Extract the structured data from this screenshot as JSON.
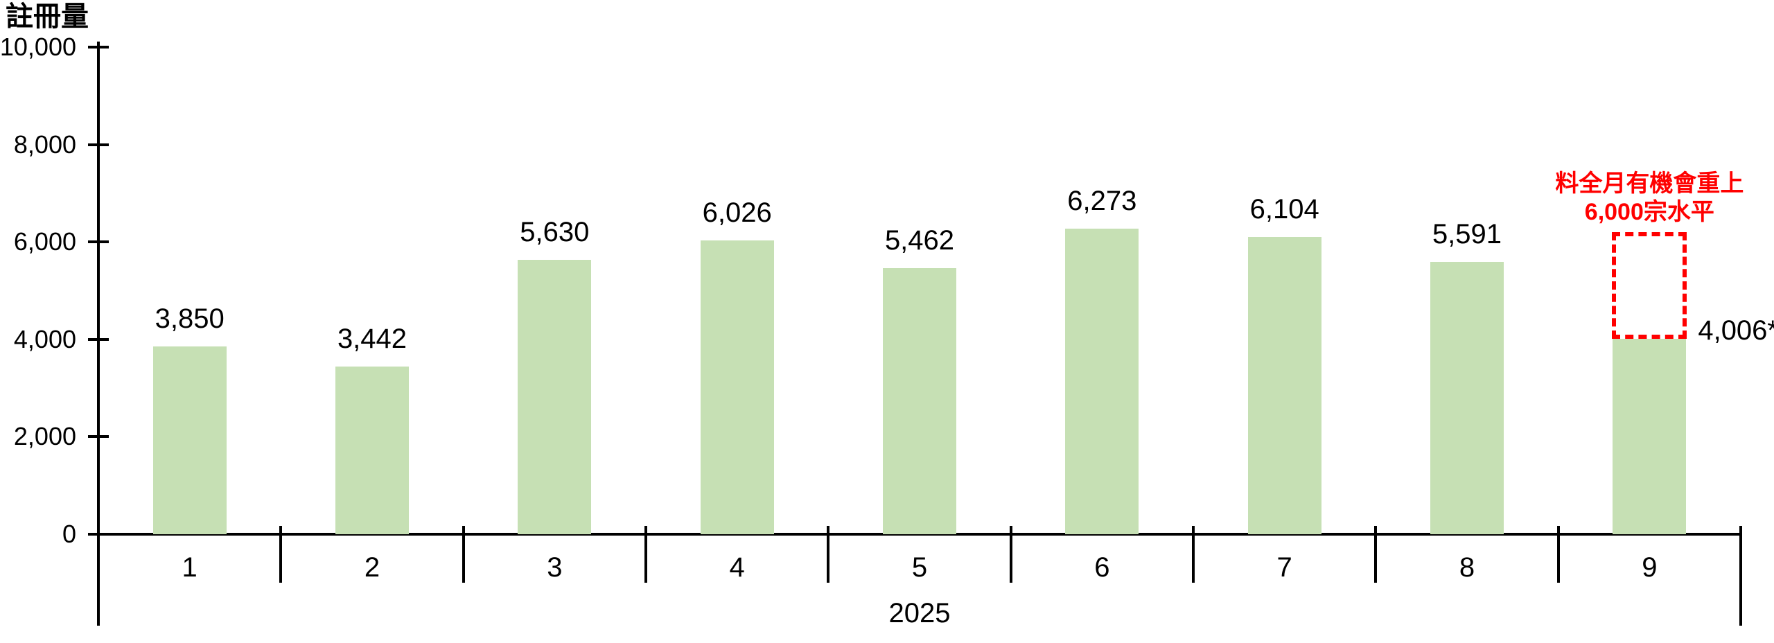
{
  "chart_data": {
    "type": "bar",
    "ylabel": "註冊量",
    "x_group_label": "2025",
    "categories": [
      "1",
      "2",
      "3",
      "4",
      "5",
      "6",
      "7",
      "8",
      "9"
    ],
    "values": [
      3850,
      3442,
      5630,
      6026,
      5462,
      6273,
      6104,
      5591,
      4006
    ],
    "value_labels": [
      "3,850",
      "3,442",
      "5,630",
      "6,026",
      "5,462",
      "6,273",
      "6,104",
      "5,591",
      "4,006*"
    ],
    "ylim": [
      0,
      10000
    ],
    "yticks": [
      0,
      2000,
      4000,
      6000,
      8000,
      10000
    ],
    "ytick_labels": [
      "0",
      "2,000",
      "4,000",
      "6,000",
      "8,000",
      "10,000"
    ],
    "grid": false,
    "legend": "none",
    "bar_color": "#c6e0b4",
    "axis_color": "#000000",
    "text_color": "#000000",
    "annotation": {
      "lines": [
        "料全月有機會重上",
        "6,000宗水平"
      ],
      "color": "#ff0000",
      "target_category": "9",
      "style": "dashed-box",
      "box_value_range": [
        4006,
        6200
      ]
    }
  }
}
